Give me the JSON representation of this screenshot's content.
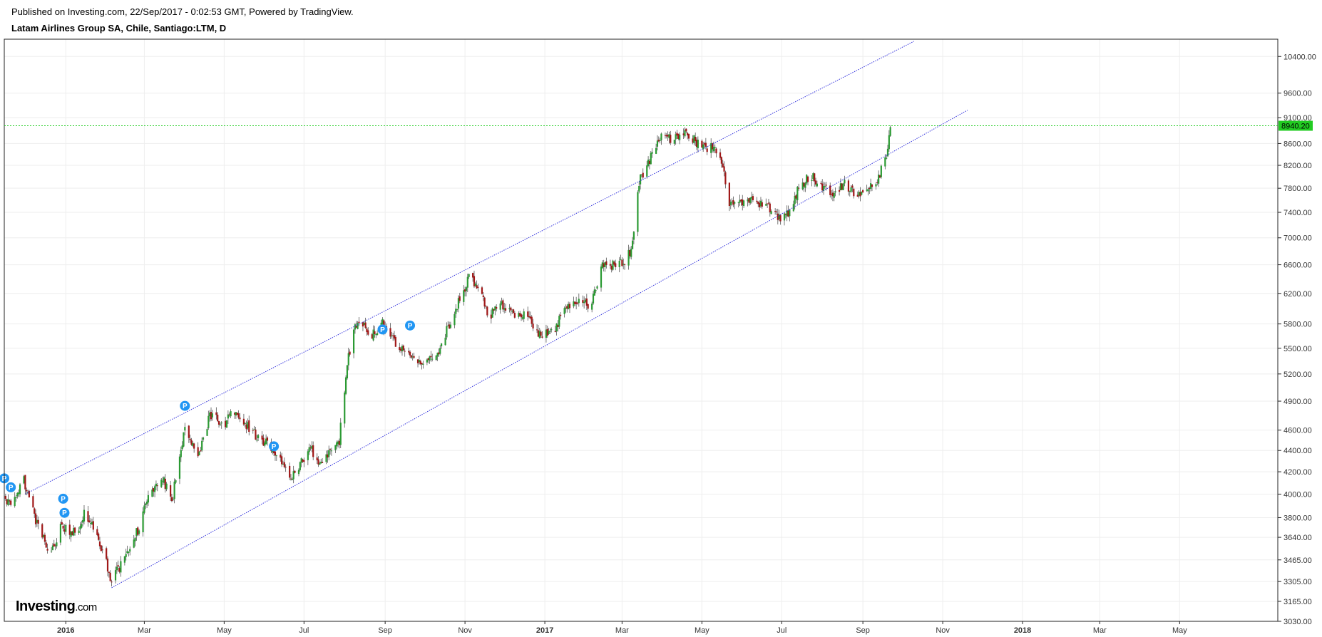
{
  "header": {
    "published": "Published on Investing.com, 22/Sep/2017 - 0:02:53 GMT, Powered by TradingView.",
    "symbol": "Latam Airlines Group SA, Chile, Santiago:LTM, D"
  },
  "logo": {
    "main": "Investing",
    "suffix": ".com"
  },
  "colors": {
    "up": "#2b9a33",
    "down": "#a01818",
    "wick": "#555555",
    "channel": "#3333dd",
    "price_line": "#22cc22",
    "price_label_bg": "#22cc22",
    "marker": "#2196f3",
    "grid": "#eeeeee"
  },
  "chart_data": {
    "type": "candlestick",
    "scale": "log",
    "ylim": [
      3030,
      10800
    ],
    "yticks": [
      3030,
      3165,
      3305,
      3465,
      3640,
      3800,
      4000,
      4200,
      4400,
      4600,
      4900,
      5200,
      5500,
      5800,
      6200,
      6600,
      7000,
      7400,
      7800,
      8200,
      8600,
      9100,
      9600,
      10400
    ],
    "ytick_labels": [
      "3030.00",
      "3165.00",
      "3305.00",
      "3465.00",
      "3640.00",
      "3800.00",
      "4000.00",
      "4200.00",
      "4400.00",
      "4600.00",
      "4900.00",
      "5200.00",
      "5500.00",
      "5800.00",
      "6200.00",
      "6600.00",
      "7000.00",
      "7400.00",
      "7800.00",
      "8200.00",
      "8600.00",
      "9100.00",
      "9600.00",
      "10400.00"
    ],
    "x_range": [
      "2015-11-15",
      "2018-07-15"
    ],
    "xticks": [
      {
        "date": "2016-01-01",
        "label": "2016",
        "bold": true
      },
      {
        "date": "2016-03-01",
        "label": "Mar"
      },
      {
        "date": "2016-05-01",
        "label": "May"
      },
      {
        "date": "2016-07-01",
        "label": "Jul"
      },
      {
        "date": "2016-09-01",
        "label": "Sep"
      },
      {
        "date": "2016-11-01",
        "label": "Nov"
      },
      {
        "date": "2017-01-01",
        "label": "2017",
        "bold": true
      },
      {
        "date": "2017-03-01",
        "label": "Mar"
      },
      {
        "date": "2017-05-01",
        "label": "May"
      },
      {
        "date": "2017-07-01",
        "label": "Jul"
      },
      {
        "date": "2017-09-01",
        "label": "Sep"
      },
      {
        "date": "2017-11-01",
        "label": "Nov"
      },
      {
        "date": "2018-01-01",
        "label": "2018",
        "bold": true
      },
      {
        "date": "2018-03-01",
        "label": "Mar"
      },
      {
        "date": "2018-05-01",
        "label": "May"
      }
    ],
    "current_price": 8940.2,
    "current_price_label": "8940.20",
    "grid": true,
    "channel_lines": [
      {
        "start": [
          "2015-12-01",
          4000
        ],
        "end": [
          "2017-10-10",
          10750
        ]
      },
      {
        "start": [
          "2016-02-05",
          3260
        ],
        "end": [
          "2017-11-20",
          9250
        ]
      }
    ],
    "markers": [
      {
        "date": "2015-11-15",
        "price": 4140,
        "label": "P"
      },
      {
        "date": "2015-11-20",
        "price": 4060,
        "label": "P"
      },
      {
        "date": "2015-12-30",
        "price": 3960,
        "label": "P"
      },
      {
        "date": "2015-12-31",
        "price": 3840,
        "label": "P"
      },
      {
        "date": "2016-04-01",
        "price": 4850,
        "label": "P"
      },
      {
        "date": "2016-06-08",
        "price": 4440,
        "label": "P"
      },
      {
        "date": "2016-08-30",
        "price": 5730,
        "label": "P"
      },
      {
        "date": "2016-09-20",
        "price": 5780,
        "label": "P"
      }
    ],
    "anchors": [
      [
        "2015-11-15",
        4000
      ],
      [
        "2015-11-20",
        3880
      ],
      [
        "2015-11-30",
        4120
      ],
      [
        "2015-12-10",
        3750
      ],
      [
        "2015-12-20",
        3500
      ],
      [
        "2015-12-28",
        3720
      ],
      [
        "2016-01-10",
        3680
      ],
      [
        "2016-01-15",
        3840
      ],
      [
        "2016-01-25",
        3650
      ],
      [
        "2016-02-05",
        3310
      ],
      [
        "2016-02-15",
        3480
      ],
      [
        "2016-02-25",
        3700
      ],
      [
        "2016-03-05",
        3990
      ],
      [
        "2016-03-15",
        4150
      ],
      [
        "2016-03-22",
        3930
      ],
      [
        "2016-03-28",
        4350
      ],
      [
        "2016-04-02",
        4650
      ],
      [
        "2016-04-10",
        4300
      ],
      [
        "2016-04-20",
        4750
      ],
      [
        "2016-05-01",
        4650
      ],
      [
        "2016-05-08",
        4820
      ],
      [
        "2016-05-15",
        4700
      ],
      [
        "2016-05-25",
        4550
      ],
      [
        "2016-06-05",
        4450
      ],
      [
        "2016-06-15",
        4280
      ],
      [
        "2016-06-22",
        4150
      ],
      [
        "2016-06-30",
        4300
      ],
      [
        "2016-07-05",
        4450
      ],
      [
        "2016-07-12",
        4280
      ],
      [
        "2016-07-20",
        4380
      ],
      [
        "2016-07-28",
        4500
      ],
      [
        "2016-08-03",
        5300
      ],
      [
        "2016-08-08",
        5750
      ],
      [
        "2016-08-15",
        5800
      ],
      [
        "2016-08-22",
        5650
      ],
      [
        "2016-08-30",
        5800
      ],
      [
        "2016-09-10",
        5550
      ],
      [
        "2016-09-20",
        5450
      ],
      [
        "2016-09-30",
        5300
      ],
      [
        "2016-10-10",
        5400
      ],
      [
        "2016-10-20",
        5800
      ],
      [
        "2016-10-30",
        6200
      ],
      [
        "2016-11-05",
        6450
      ],
      [
        "2016-11-12",
        6200
      ],
      [
        "2016-11-20",
        5900
      ],
      [
        "2016-11-28",
        6050
      ],
      [
        "2016-12-08",
        5900
      ],
      [
        "2016-12-18",
        5950
      ],
      [
        "2016-12-28",
        5650
      ],
      [
        "2017-01-08",
        5700
      ],
      [
        "2017-01-18",
        6050
      ],
      [
        "2017-01-28",
        6150
      ],
      [
        "2017-02-05",
        6000
      ],
      [
        "2017-02-14",
        6600
      ],
      [
        "2017-02-24",
        6600
      ],
      [
        "2017-03-04",
        6650
      ],
      [
        "2017-03-09",
        6900
      ],
      [
        "2017-03-14",
        7900
      ],
      [
        "2017-03-22",
        8300
      ],
      [
        "2017-03-30",
        8750
      ],
      [
        "2017-04-08",
        8700
      ],
      [
        "2017-04-16",
        8800
      ],
      [
        "2017-04-26",
        8650
      ],
      [
        "2017-05-04",
        8500
      ],
      [
        "2017-05-10",
        8550
      ],
      [
        "2017-05-16",
        8300
      ],
      [
        "2017-05-22",
        7550
      ],
      [
        "2017-06-01",
        7550
      ],
      [
        "2017-06-10",
        7600
      ],
      [
        "2017-06-20",
        7500
      ],
      [
        "2017-06-30",
        7300
      ],
      [
        "2017-07-06",
        7400
      ],
      [
        "2017-07-13",
        7750
      ],
      [
        "2017-07-23",
        8050
      ],
      [
        "2017-08-02",
        7800
      ],
      [
        "2017-08-10",
        7650
      ],
      [
        "2017-08-18",
        7900
      ],
      [
        "2017-08-25",
        7700
      ],
      [
        "2017-09-02",
        7650
      ],
      [
        "2017-09-08",
        7850
      ],
      [
        "2017-09-14",
        8050
      ],
      [
        "2017-09-19",
        8350
      ],
      [
        "2017-09-22",
        8940
      ]
    ]
  }
}
